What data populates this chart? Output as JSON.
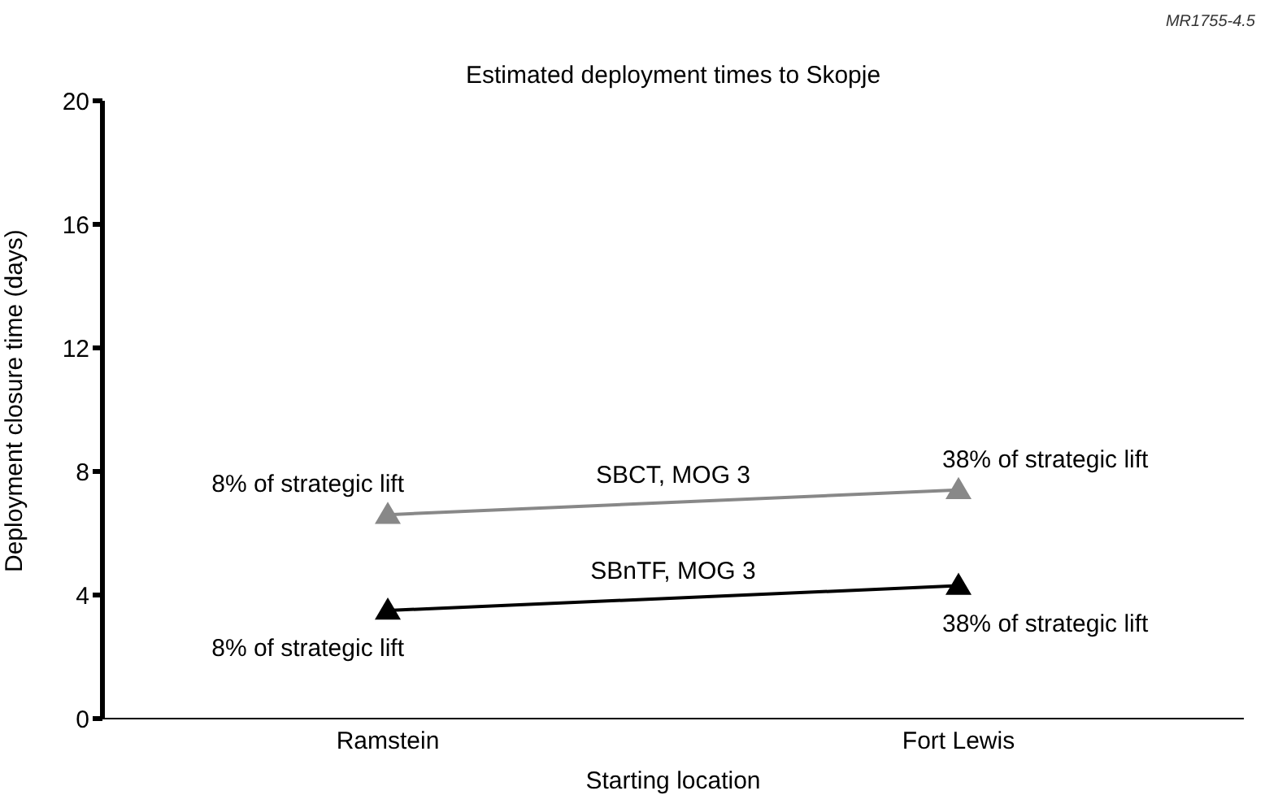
{
  "chart_data": {
    "type": "line",
    "title": "Estimated deployment times to Skopje",
    "xlabel": "Starting location",
    "ylabel": "Deployment closure time (days)",
    "categories": [
      "Ramstein",
      "Fort Lewis"
    ],
    "series": [
      {
        "name": "SBCT, MOG 3",
        "color": "#888888",
        "values": [
          6.6,
          7.4
        ]
      },
      {
        "name": "SBnTF, MOG 3",
        "color": "#000000",
        "values": [
          3.5,
          4.3
        ]
      }
    ],
    "ylim": [
      0,
      20
    ],
    "yticks": [
      0,
      4,
      8,
      12,
      16,
      20
    ],
    "grid": false,
    "legend": false,
    "marker": "triangle",
    "line_style": "solid",
    "annotations": [
      "MR1755-4.5",
      {
        "text": "8% of strategic lift",
        "x": "Ramstein",
        "y": 6.6
      },
      {
        "text": "38% of strategic lift",
        "x": "Fort Lewis",
        "y": 7.4
      },
      {
        "text": "8% of strategic lift",
        "x": "Ramstein",
        "y": 3.5
      },
      {
        "text": "38% of strategic lift",
        "x": "Fort Lewis",
        "y": 4.3
      }
    ]
  }
}
